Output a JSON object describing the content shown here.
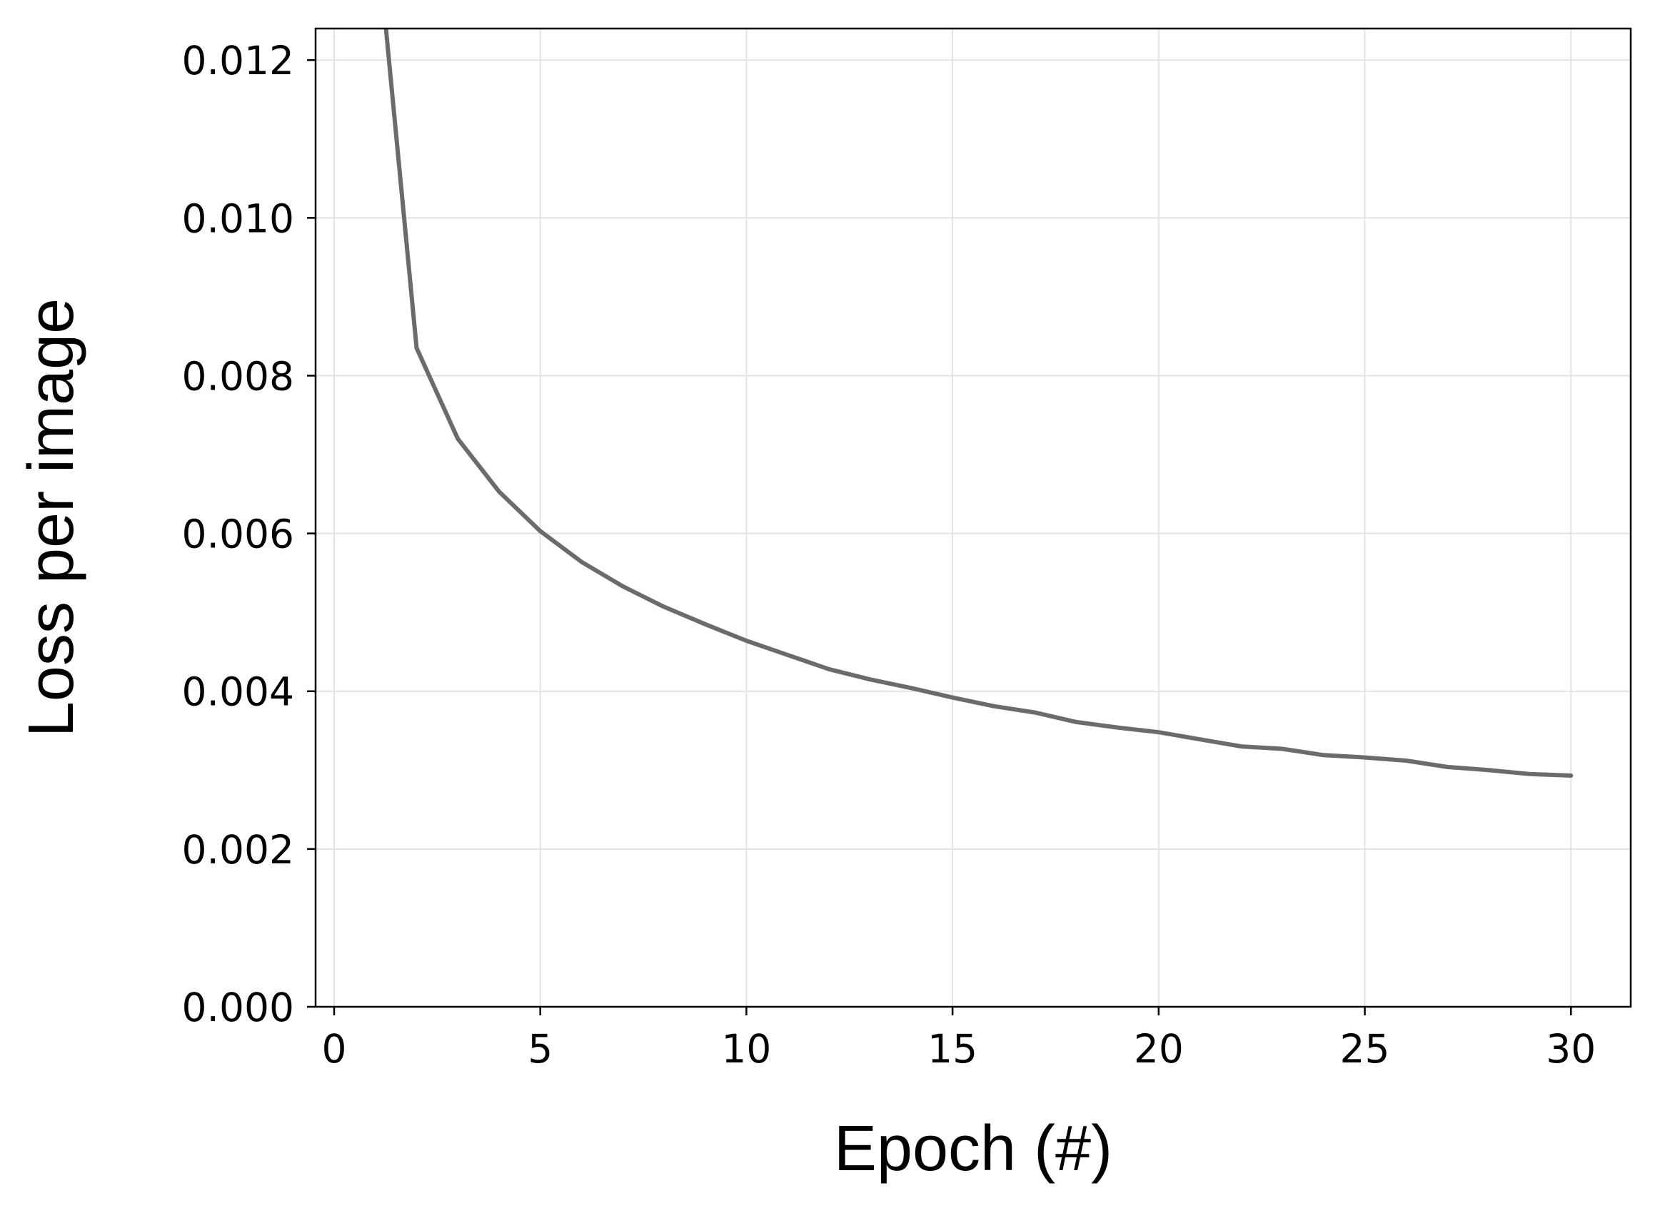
{
  "chart_data": {
    "type": "line",
    "title": "",
    "xlabel": "Epoch (#)",
    "ylabel": "Loss per image",
    "xlim": [
      -0.45,
      31.45
    ],
    "ylim": [
      0.0,
      0.0124
    ],
    "xticks": [
      0,
      5,
      10,
      15,
      20,
      25,
      30
    ],
    "xtick_labels": [
      "0",
      "5",
      "10",
      "15",
      "20",
      "25",
      "30"
    ],
    "yticks": [
      0.0,
      0.002,
      0.004,
      0.006,
      0.008,
      0.01,
      0.012
    ],
    "ytick_labels": [
      "0.000",
      "0.002",
      "0.004",
      "0.006",
      "0.008",
      "0.010",
      "0.012"
    ],
    "grid": true,
    "legend": null,
    "colors": {
      "line": "#6b6b6b",
      "grid": "#e3e3e3",
      "axes": "#000000"
    },
    "series": [
      {
        "x": [
          1,
          2,
          3,
          4,
          5,
          6,
          7,
          8,
          9,
          10,
          11,
          12,
          13,
          14,
          15,
          16,
          17,
          18,
          19,
          20,
          21,
          22,
          23,
          24,
          25,
          26,
          27,
          28,
          29,
          30
        ],
        "values": [
          0.0138,
          0.00835,
          0.0072,
          0.00653,
          0.00603,
          0.00564,
          0.00533,
          0.00507,
          0.00485,
          0.00464,
          0.00446,
          0.00428,
          0.00415,
          0.00404,
          0.00392,
          0.00381,
          0.00373,
          0.00361,
          0.00354,
          0.00348,
          0.00339,
          0.0033,
          0.00327,
          0.00319,
          0.00316,
          0.00312,
          0.00304,
          0.003,
          0.00295,
          0.00293
        ]
      }
    ]
  }
}
